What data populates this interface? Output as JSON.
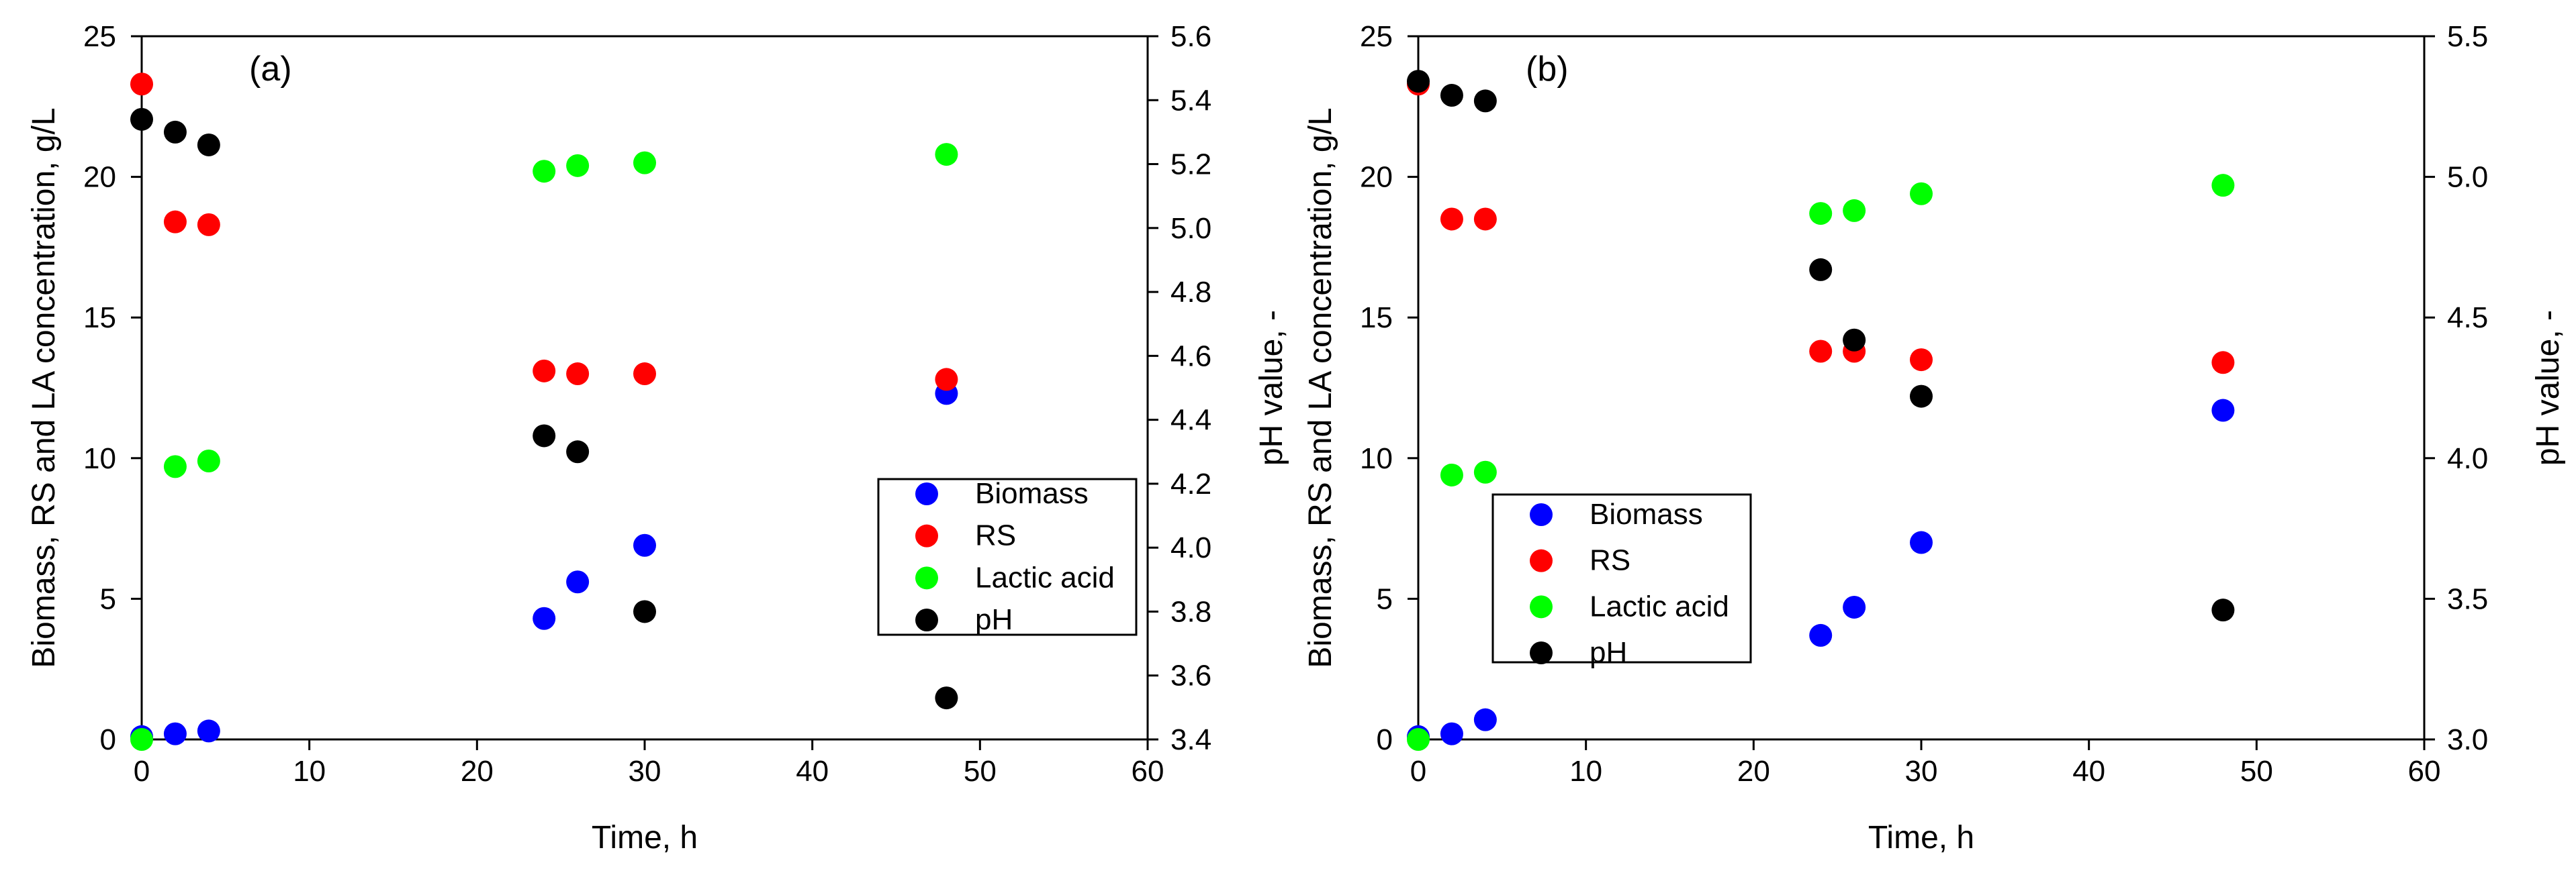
{
  "chart_data": [
    {
      "type": "scatter",
      "panel_label": "(a)",
      "xlabel": "Time, h",
      "ylabel": "Biomass, RS and LA concentration, g/L",
      "y2label": "pH value, -",
      "xlim": [
        0,
        60
      ],
      "ylim": [
        0,
        25
      ],
      "y2lim": [
        3.4,
        5.6
      ],
      "xticks": [
        "0",
        "10",
        "20",
        "30",
        "40",
        "50",
        "60"
      ],
      "yticks": [
        "0",
        "5",
        "10",
        "15",
        "20",
        "25"
      ],
      "y2ticks": [
        "3.4",
        "3.6",
        "3.8",
        "4.0",
        "4.2",
        "4.4",
        "4.6",
        "4.8",
        "5.0",
        "5.2",
        "5.4",
        "5.6"
      ],
      "legend_position": "lower-right",
      "series": [
        {
          "name": "Biomass",
          "axis": "left",
          "color": "#0000ff",
          "x": [
            0,
            2,
            4,
            24,
            26,
            30,
            48
          ],
          "values": [
            0.1,
            0.2,
            0.3,
            4.3,
            5.6,
            6.9,
            12.3
          ]
        },
        {
          "name": "RS",
          "axis": "left",
          "color": "#ff0000",
          "x": [
            0,
            2,
            4,
            24,
            26,
            30,
            48
          ],
          "values": [
            23.3,
            18.4,
            18.3,
            13.1,
            13.0,
            13.0,
            12.8
          ]
        },
        {
          "name": "Lactic acid",
          "axis": "left",
          "color": "#00ff00",
          "x": [
            0,
            2,
            4,
            24,
            26,
            30,
            48
          ],
          "values": [
            0.0,
            9.7,
            9.9,
            20.2,
            20.4,
            20.5,
            20.8
          ]
        },
        {
          "name": "pH",
          "axis": "right",
          "color": "#000000",
          "x": [
            0,
            2,
            4,
            24,
            26,
            30,
            48
          ],
          "values": [
            5.34,
            5.3,
            5.26,
            4.35,
            4.3,
            3.8,
            3.53
          ]
        }
      ]
    },
    {
      "type": "scatter",
      "panel_label": "(b)",
      "xlabel": "Time, h",
      "ylabel": "Biomass, RS and LA concentration, g/L",
      "y2label": "pH value, -",
      "xlim": [
        0,
        60
      ],
      "ylim": [
        0,
        25
      ],
      "y2lim": [
        3.0,
        5.5
      ],
      "xticks": [
        "0",
        "10",
        "20",
        "30",
        "40",
        "50",
        "60"
      ],
      "yticks": [
        "0",
        "5",
        "10",
        "15",
        "20",
        "25"
      ],
      "y2ticks": [
        "3.0",
        "3.5",
        "4.0",
        "4.5",
        "5.0",
        "5.5"
      ],
      "legend_position": "lower-left",
      "series": [
        {
          "name": "Biomass",
          "axis": "left",
          "color": "#0000ff",
          "x": [
            0,
            2,
            4,
            24,
            26,
            30,
            48
          ],
          "values": [
            0.1,
            0.2,
            0.7,
            3.7,
            4.7,
            7.0,
            11.7
          ]
        },
        {
          "name": "RS",
          "axis": "left",
          "color": "#ff0000",
          "x": [
            0,
            2,
            4,
            24,
            26,
            30,
            48
          ],
          "values": [
            23.3,
            18.5,
            18.5,
            13.8,
            13.8,
            13.5,
            13.4
          ]
        },
        {
          "name": "Lactic acid",
          "axis": "left",
          "color": "#00ff00",
          "x": [
            0,
            2,
            4,
            24,
            26,
            30,
            48
          ],
          "values": [
            0.0,
            9.4,
            9.5,
            18.7,
            18.8,
            19.4,
            19.7
          ]
        },
        {
          "name": "pH",
          "axis": "right",
          "color": "#000000",
          "x": [
            0,
            2,
            4,
            24,
            26,
            30,
            48
          ],
          "values": [
            5.34,
            5.29,
            5.27,
            4.67,
            4.42,
            4.22,
            3.46
          ]
        }
      ]
    }
  ]
}
